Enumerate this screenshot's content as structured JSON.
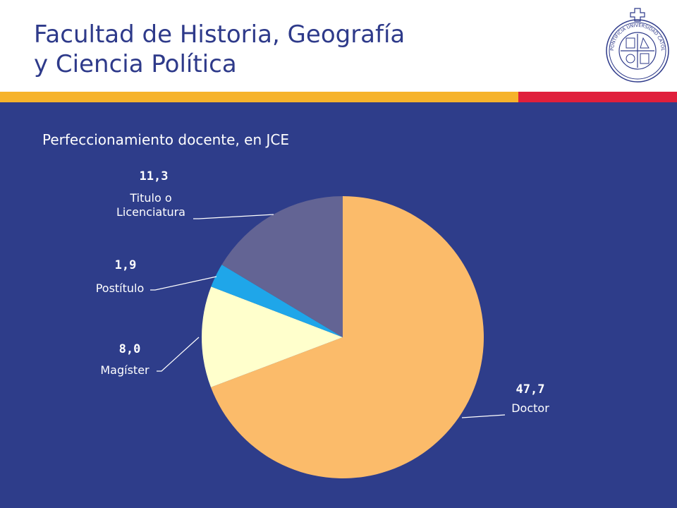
{
  "header": {
    "title_line1": "Facultad de Historia, Geografía",
    "title_line2": "y Ciencia Política",
    "seal_text": "PONTIFICIA UNIVERSIDAD CATÓLICA DE CHILE"
  },
  "colors": {
    "title": "#2e3a8a",
    "band_orange": "#f6b32b",
    "band_red": "#e01f3c",
    "panel": "#2e3d8a"
  },
  "chart_data": {
    "type": "pie",
    "title": "Perfeccionamiento docente, en JCE",
    "start_angle_deg": 0,
    "direction": "clockwise",
    "slices": [
      {
        "label": "Doctor",
        "value": 47.7,
        "display": "47,7",
        "color": "#fbbb6a"
      },
      {
        "label": "Magíster",
        "value": 8.0,
        "display": "8,0",
        "color": "#ffffcc"
      },
      {
        "label": "Postítulo",
        "value": 1.9,
        "display": "1,9",
        "color": "#1fa6e9"
      },
      {
        "label": "Titulo o\nLicenciatura",
        "value": 11.3,
        "display": "11,3",
        "color": "#636494"
      }
    ]
  }
}
